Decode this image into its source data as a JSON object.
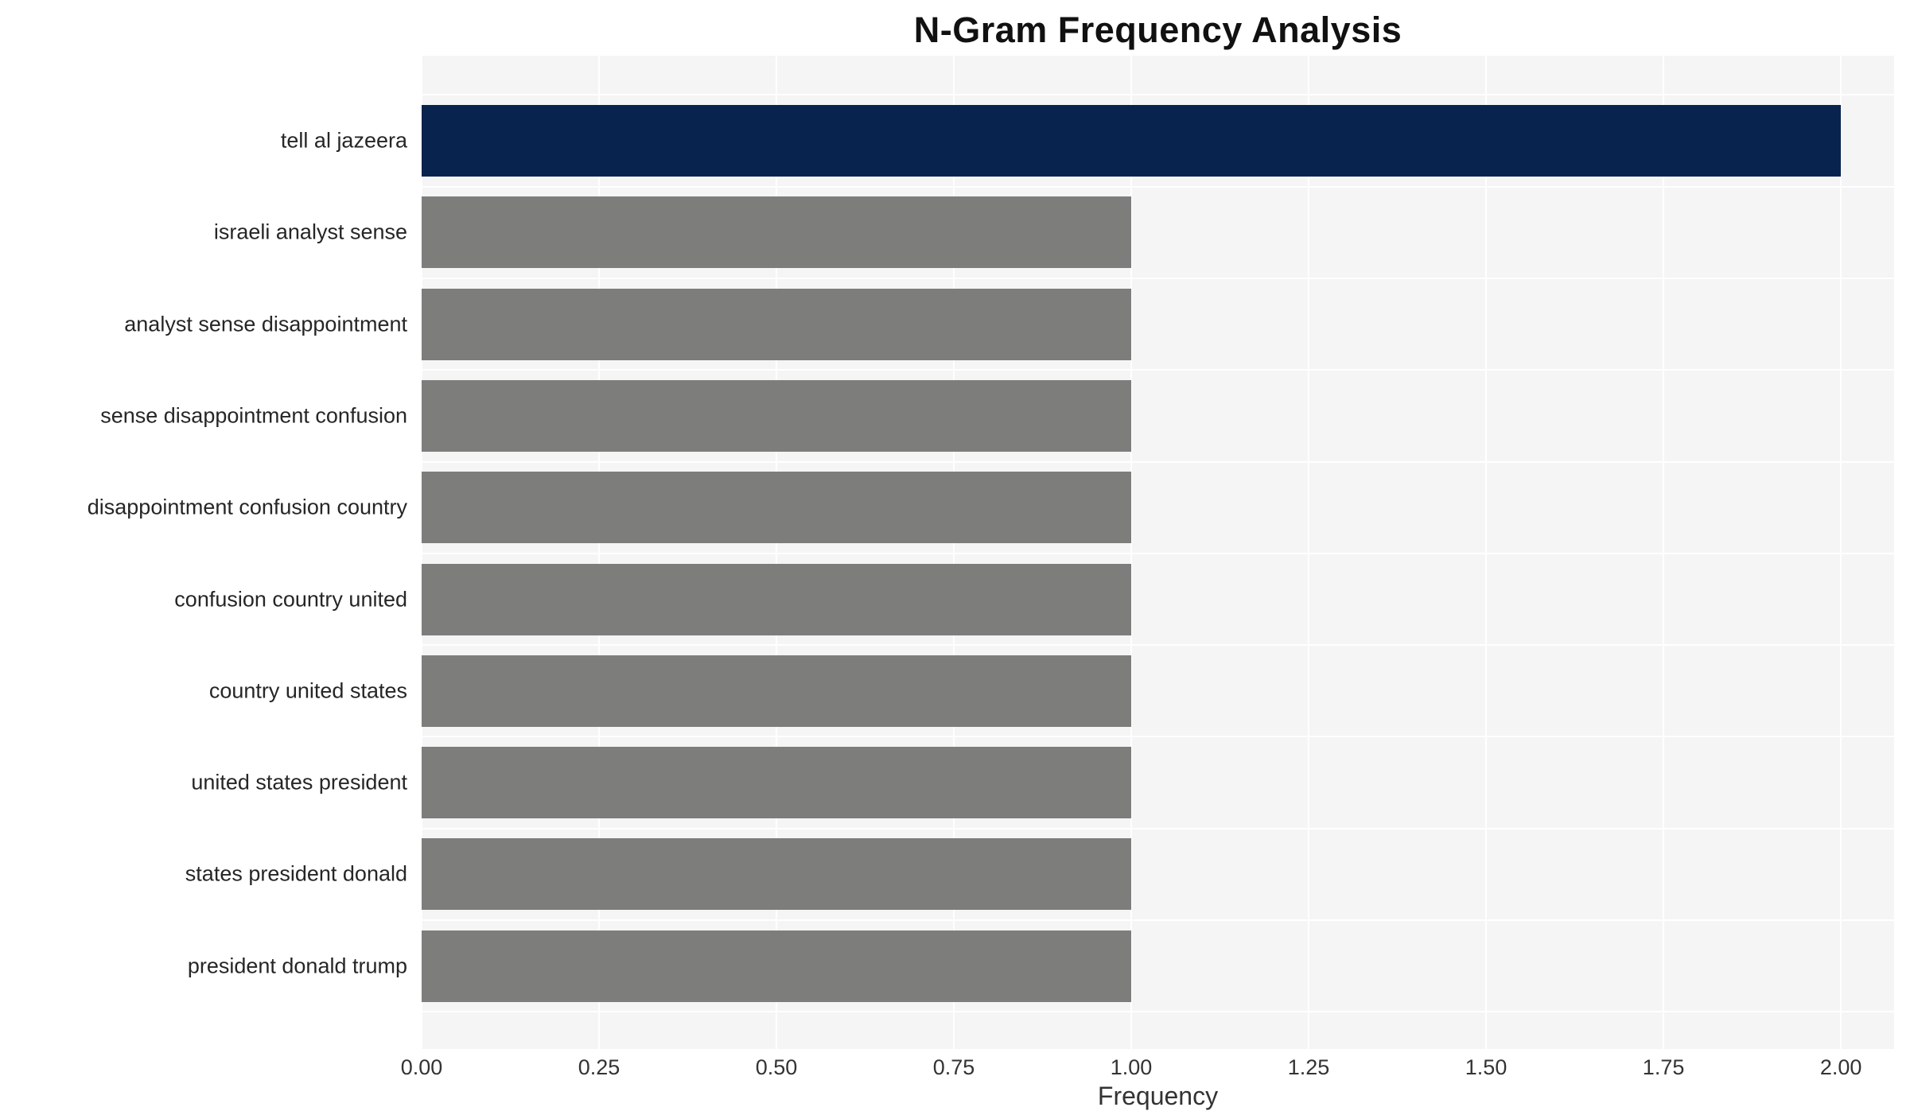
{
  "chart_data": {
    "type": "bar",
    "orientation": "horizontal",
    "title": "N-Gram Frequency Analysis",
    "xlabel": "Frequency",
    "ylabel": "",
    "categories": [
      "tell al jazeera",
      "israeli analyst sense",
      "analyst sense disappointment",
      "sense disappointment confusion",
      "disappointment confusion country",
      "confusion country united",
      "country united states",
      "united states president",
      "states president donald",
      "president donald trump"
    ],
    "values": [
      2,
      1,
      1,
      1,
      1,
      1,
      1,
      1,
      1,
      1
    ],
    "xlim": [
      0,
      2.075
    ],
    "xticks": [
      0,
      0.25,
      0.5,
      0.75,
      1.0,
      1.25,
      1.5,
      1.75,
      2.0
    ],
    "xtick_labels": [
      "0.00",
      "0.25",
      "0.50",
      "0.75",
      "1.00",
      "1.25",
      "1.50",
      "1.75",
      "2.00"
    ],
    "grid": true,
    "legend": "none",
    "bar_colors": [
      "#08234d",
      "#7d7d7b",
      "#7d7d7b",
      "#7d7d7b",
      "#7d7d7b",
      "#7d7d7b",
      "#7d7d7b",
      "#7d7d7b",
      "#7d7d7b",
      "#7d7d7b"
    ],
    "colors": {
      "highlight_bar": "#08234d",
      "default_bar": "#7d7d7b",
      "plot_background": "#f5f5f6",
      "gridline": "#ffffff",
      "title_text": "#111111",
      "label_text": "#262626",
      "tick_text": "#333333"
    }
  }
}
